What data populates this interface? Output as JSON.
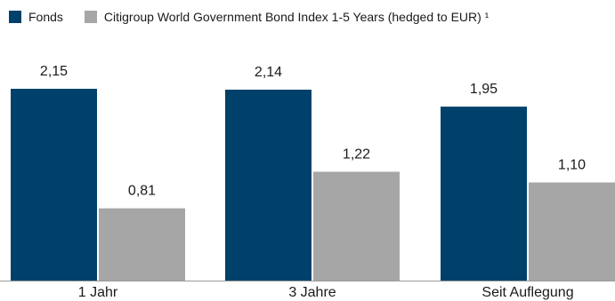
{
  "chart_data": {
    "type": "bar",
    "categories": [
      "1 Jahr",
      "3 Jahre",
      "Seit Auflegung"
    ],
    "series": [
      {
        "name": "Fonds",
        "values": [
          2.15,
          2.14,
          1.95
        ],
        "labels": [
          "2,15",
          "2,14",
          "1,95"
        ],
        "color": "#00416b"
      },
      {
        "name": "Citigroup World Government Bond Index 1-5 Years (hedged to EUR) ¹",
        "values": [
          0.81,
          1.22,
          1.1
        ],
        "labels": [
          "0,81",
          "1,22",
          "1,10"
        ],
        "color": "#a6a6a6"
      }
    ],
    "title": "",
    "xlabel": "",
    "ylabel": "",
    "ylim": [
      0,
      2.15
    ],
    "grid": false,
    "legend_position": "top-left"
  }
}
